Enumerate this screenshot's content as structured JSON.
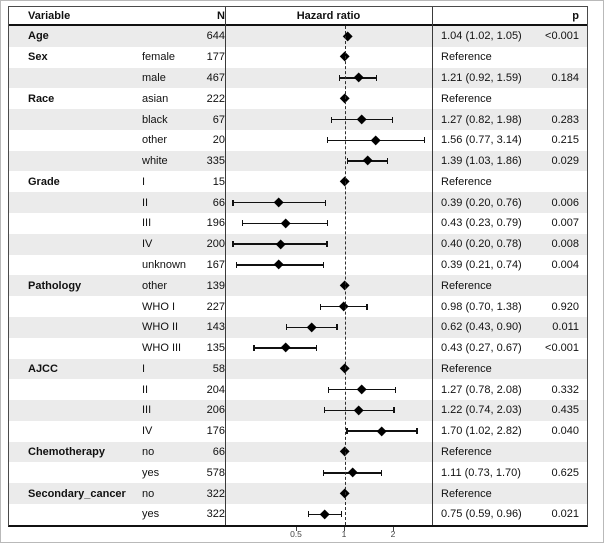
{
  "header": {
    "variable": "Variable",
    "n": "N",
    "hazard_ratio": "Hazard ratio",
    "p": "p"
  },
  "chart_data": {
    "type": "scatter",
    "subtype": "forest-plot",
    "title": "Hazard ratio",
    "x_scale": "log2",
    "x_ticks": [
      0.5,
      1,
      2
    ],
    "x_tick_labels": [
      "0.5",
      "1",
      "2"
    ],
    "xlim": [
      0.18,
      3.55
    ],
    "reference_line": 1,
    "marker": "diamond",
    "marker_color": "#000000",
    "stripe_color": "#ebebeb",
    "rows": [
      {
        "group": "Age",
        "level": "",
        "n": "644",
        "hr": 1.04,
        "lo": 1.02,
        "hi": 1.05,
        "est": "1.04 (1.02, 1.05)",
        "p": "<0.001",
        "ref": false
      },
      {
        "group": "Sex",
        "level": "female",
        "n": "177",
        "hr": 1.0,
        "lo": null,
        "hi": null,
        "est": "Reference",
        "p": "",
        "ref": true
      },
      {
        "group": "",
        "level": "male",
        "n": "467",
        "hr": 1.21,
        "lo": 0.92,
        "hi": 1.59,
        "est": "1.21 (0.92, 1.59)",
        "p": "0.184",
        "ref": false
      },
      {
        "group": "Race",
        "level": "asian",
        "n": "222",
        "hr": 1.0,
        "lo": null,
        "hi": null,
        "est": "Reference",
        "p": "",
        "ref": true
      },
      {
        "group": "",
        "level": "black",
        "n": "67",
        "hr": 1.27,
        "lo": 0.82,
        "hi": 1.98,
        "est": "1.27 (0.82, 1.98)",
        "p": "0.283",
        "ref": false
      },
      {
        "group": "",
        "level": "other",
        "n": "20",
        "hr": 1.56,
        "lo": 0.77,
        "hi": 3.14,
        "est": "1.56 (0.77, 3.14)",
        "p": "0.215",
        "ref": false
      },
      {
        "group": "",
        "level": "white",
        "n": "335",
        "hr": 1.39,
        "lo": 1.03,
        "hi": 1.86,
        "est": "1.39 (1.03, 1.86)",
        "p": "0.029",
        "ref": false
      },
      {
        "group": "Grade",
        "level": "I",
        "n": "15",
        "hr": 1.0,
        "lo": null,
        "hi": null,
        "est": "Reference",
        "p": "",
        "ref": true
      },
      {
        "group": "",
        "level": "II",
        "n": "66",
        "hr": 0.39,
        "lo": 0.2,
        "hi": 0.76,
        "est": "0.39 (0.20, 0.76)",
        "p": "0.006",
        "ref": false
      },
      {
        "group": "",
        "level": "III",
        "n": "196",
        "hr": 0.43,
        "lo": 0.23,
        "hi": 0.79,
        "est": "0.43 (0.23, 0.79)",
        "p": "0.007",
        "ref": false
      },
      {
        "group": "",
        "level": "IV",
        "n": "200",
        "hr": 0.4,
        "lo": 0.2,
        "hi": 0.78,
        "est": "0.40 (0.20, 0.78)",
        "p": "0.008",
        "ref": false
      },
      {
        "group": "",
        "level": "unknown",
        "n": "167",
        "hr": 0.39,
        "lo": 0.21,
        "hi": 0.74,
        "est": "0.39 (0.21, 0.74)",
        "p": "0.004",
        "ref": false
      },
      {
        "group": "Pathology",
        "level": "other",
        "n": "139",
        "hr": 1.0,
        "lo": null,
        "hi": null,
        "est": "Reference",
        "p": "",
        "ref": true
      },
      {
        "group": "",
        "level": "WHO I",
        "n": "227",
        "hr": 0.98,
        "lo": 0.7,
        "hi": 1.38,
        "est": "0.98 (0.70, 1.38)",
        "p": "0.920",
        "ref": false
      },
      {
        "group": "",
        "level": "WHO II",
        "n": "143",
        "hr": 0.62,
        "lo": 0.43,
        "hi": 0.9,
        "est": "0.62 (0.43, 0.90)",
        "p": "0.011",
        "ref": false
      },
      {
        "group": "",
        "level": "WHO III",
        "n": "135",
        "hr": 0.43,
        "lo": 0.27,
        "hi": 0.67,
        "est": "0.43 (0.27, 0.67)",
        "p": "<0.001",
        "ref": false
      },
      {
        "group": "AJCC",
        "level": "I",
        "n": "58",
        "hr": 1.0,
        "lo": null,
        "hi": null,
        "est": "Reference",
        "p": "",
        "ref": true
      },
      {
        "group": "",
        "level": "II",
        "n": "204",
        "hr": 1.27,
        "lo": 0.78,
        "hi": 2.08,
        "est": "1.27 (0.78, 2.08)",
        "p": "0.332",
        "ref": false
      },
      {
        "group": "",
        "level": "III",
        "n": "206",
        "hr": 1.22,
        "lo": 0.74,
        "hi": 2.03,
        "est": "1.22 (0.74, 2.03)",
        "p": "0.435",
        "ref": false
      },
      {
        "group": "",
        "level": "IV",
        "n": "176",
        "hr": 1.7,
        "lo": 1.02,
        "hi": 2.82,
        "est": "1.70 (1.02, 2.82)",
        "p": "0.040",
        "ref": false
      },
      {
        "group": "Chemotherapy",
        "level": "no",
        "n": "66",
        "hr": 1.0,
        "lo": null,
        "hi": null,
        "est": "Reference",
        "p": "",
        "ref": true
      },
      {
        "group": "",
        "level": "yes",
        "n": "578",
        "hr": 1.11,
        "lo": 0.73,
        "hi": 1.7,
        "est": "1.11 (0.73, 1.70)",
        "p": "0.625",
        "ref": false
      },
      {
        "group": "Secondary_cancer",
        "level": "no",
        "n": "322",
        "hr": 1.0,
        "lo": null,
        "hi": null,
        "est": "Reference",
        "p": "",
        "ref": true
      },
      {
        "group": "",
        "level": "yes",
        "n": "322",
        "hr": 0.75,
        "lo": 0.59,
        "hi": 0.96,
        "est": "0.75 (0.59, 0.96)",
        "p": "0.021",
        "ref": false
      }
    ]
  }
}
